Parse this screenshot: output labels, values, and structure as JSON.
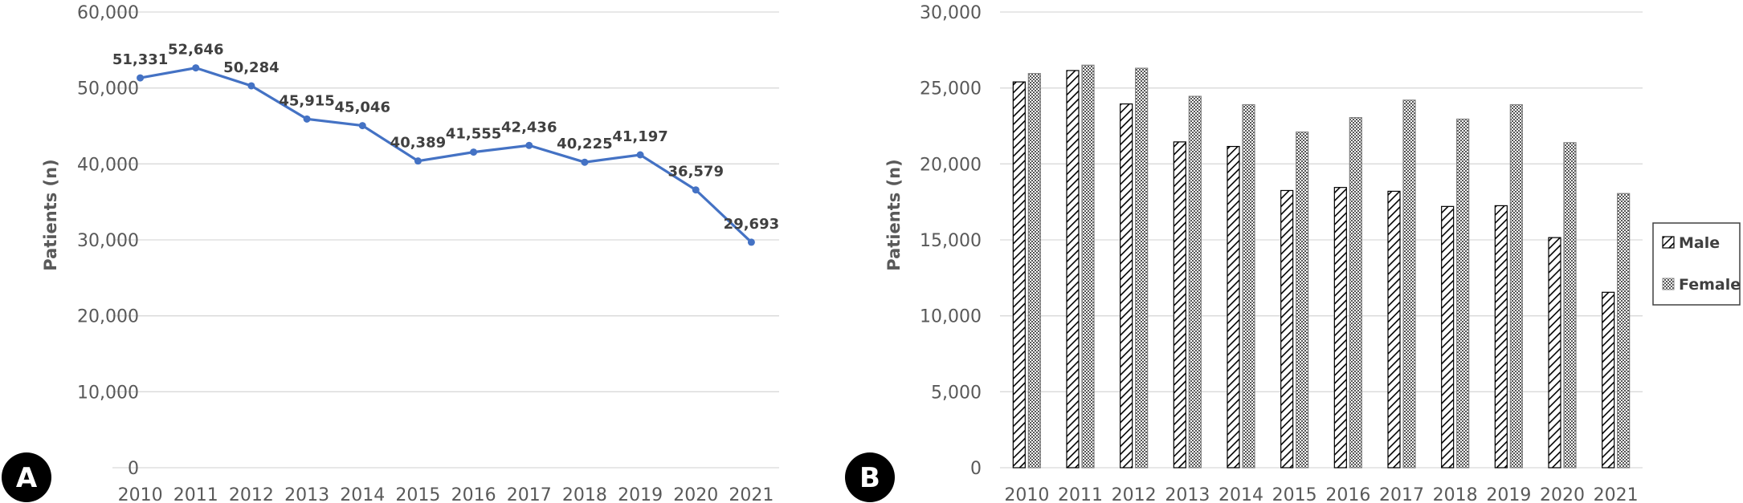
{
  "panels": {
    "a": {
      "letter": "A"
    },
    "b": {
      "letter": "B"
    }
  },
  "colors": {
    "line": "#4472C4",
    "grid": "#d9d9d9",
    "text": "#595959",
    "badge": "#000000"
  },
  "chart_data": [
    {
      "type": "line",
      "categories": [
        "2010",
        "2011",
        "2012",
        "2013",
        "2014",
        "2015",
        "2016",
        "2017",
        "2018",
        "2019",
        "2020",
        "2021"
      ],
      "values": [
        51331,
        52646,
        50284,
        45915,
        45046,
        40389,
        41555,
        42436,
        40225,
        41197,
        36579,
        29693
      ],
      "value_labels": [
        "51,331",
        "52,646",
        "50,284",
        "45,915",
        "45,046",
        "40,389",
        "41,555",
        "42,436",
        "40,225",
        "41,197",
        "36,579",
        "29,693"
      ],
      "ylabel": "Patients (n)",
      "ylim": [
        0,
        60000
      ],
      "yticks": [
        "0",
        "10,000",
        "20,000",
        "30,000",
        "40,000",
        "50,000",
        "60,000"
      ],
      "grid": true,
      "marker": "circle"
    },
    {
      "type": "bar",
      "categories": [
        "2010",
        "2011",
        "2012",
        "2013",
        "2014",
        "2015",
        "2016",
        "2017",
        "2018",
        "2019",
        "2020",
        "2021"
      ],
      "series": [
        {
          "name": "Male",
          "pattern": "diagonal-hatch",
          "values": [
            25400,
            26150,
            23950,
            21450,
            21150,
            18250,
            18450,
            18200,
            17200,
            17250,
            15150,
            11550
          ]
        },
        {
          "name": "Female",
          "pattern": "dotted",
          "values": [
            25950,
            26500,
            26300,
            24450,
            23900,
            22100,
            23050,
            24200,
            22950,
            23900,
            21400,
            18050
          ]
        }
      ],
      "ylabel": "Patients (n)",
      "ylim": [
        0,
        30000
      ],
      "yticks": [
        "0",
        "5,000",
        "10,000",
        "15,000",
        "20,000",
        "25,000",
        "30,000"
      ],
      "grid": true,
      "legend_position": "right"
    }
  ]
}
